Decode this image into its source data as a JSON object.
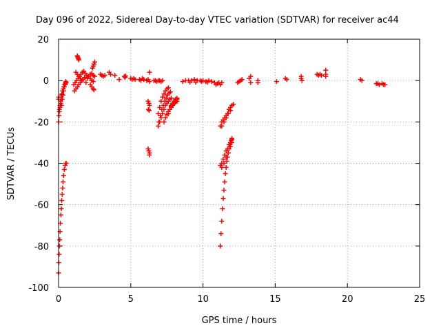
{
  "chart_data": {
    "type": "scatter",
    "title": "Day 096 of 2022, Sidereal Day-to-day VTEC variation (SDTVAR) for receiver ac44",
    "xlabel": "GPS time / hours",
    "ylabel": "SDTVAR / TECUs",
    "xlim": [
      0,
      25
    ],
    "ylim": [
      -100,
      20
    ],
    "xticks": [
      0,
      5,
      10,
      15,
      20,
      25
    ],
    "xtick_labels": [
      "0",
      "5",
      "10",
      "15",
      "20",
      "25"
    ],
    "yticks": [
      -100,
      -80,
      -60,
      -40,
      -20,
      0,
      20
    ],
    "ytick_labels": [
      "-100",
      "-80",
      "-60",
      "-40",
      "-20",
      "0",
      "20"
    ],
    "grid": true,
    "marker": "plus",
    "series": [
      {
        "name": "SDTVAR",
        "color": "#ff0000",
        "points": [
          [
            0.0,
            -93
          ],
          [
            0.02,
            -88
          ],
          [
            0.04,
            -84
          ],
          [
            0.06,
            -80
          ],
          [
            0.08,
            -77
          ],
          [
            0.1,
            -73
          ],
          [
            0.13,
            -69
          ],
          [
            0.16,
            -65
          ],
          [
            0.19,
            -62
          ],
          [
            0.22,
            -58
          ],
          [
            0.25,
            -55
          ],
          [
            0.28,
            -52
          ],
          [
            0.31,
            -49
          ],
          [
            0.35,
            -46
          ],
          [
            0.4,
            -43
          ],
          [
            0.45,
            -41
          ],
          [
            0.5,
            -40
          ],
          [
            0.53,
            -40
          ],
          [
            0.0,
            -20
          ],
          [
            0.03,
            -17
          ],
          [
            0.06,
            -14
          ],
          [
            0.1,
            -12
          ],
          [
            0.14,
            -10
          ],
          [
            0.18,
            -8
          ],
          [
            0.23,
            -6.5
          ],
          [
            0.28,
            -5
          ],
          [
            0.33,
            -4
          ],
          [
            0.38,
            -3
          ],
          [
            0.43,
            -2
          ],
          [
            0.48,
            -1.5
          ],
          [
            0.53,
            -1
          ],
          [
            0.05,
            -15
          ],
          [
            0.1,
            -13
          ],
          [
            0.15,
            -11
          ],
          [
            0.2,
            -9
          ],
          [
            0.25,
            -7
          ],
          [
            0.3,
            -5
          ],
          [
            0.36,
            -3
          ],
          [
            0.42,
            -2
          ],
          [
            0.48,
            -1
          ],
          [
            0.2,
            -12
          ],
          [
            0.25,
            -9
          ],
          [
            0.3,
            -7
          ],
          [
            0.35,
            -5
          ],
          [
            0.4,
            -3
          ],
          [
            0.45,
            -2
          ],
          [
            0.5,
            -0.5
          ],
          [
            0.0,
            -9
          ],
          [
            0.02,
            -8
          ],
          [
            1.05,
            -2
          ],
          [
            1.15,
            -1
          ],
          [
            1.25,
            0
          ],
          [
            1.35,
            1
          ],
          [
            1.45,
            2
          ],
          [
            1.55,
            3
          ],
          [
            1.65,
            4
          ],
          [
            1.75,
            4.5
          ],
          [
            1.85,
            3.5
          ],
          [
            1.95,
            2.5
          ],
          [
            2.05,
            2
          ],
          [
            1.1,
            -5
          ],
          [
            1.2,
            -4
          ],
          [
            1.3,
            -3
          ],
          [
            1.4,
            -2
          ],
          [
            1.5,
            -1
          ],
          [
            1.6,
            0
          ],
          [
            1.7,
            0.5
          ],
          [
            1.8,
            1.5
          ],
          [
            1.2,
            4
          ],
          [
            1.3,
            3
          ],
          [
            1.4,
            2
          ],
          [
            1.5,
            1
          ],
          [
            1.3,
            12
          ],
          [
            1.32,
            11.5
          ],
          [
            1.35,
            11
          ],
          [
            1.38,
            10.5
          ],
          [
            1.4,
            10
          ],
          [
            1.9,
            -1
          ],
          [
            2.0,
            1
          ],
          [
            2.1,
            2
          ],
          [
            2.2,
            3
          ],
          [
            2.3,
            3.5
          ],
          [
            2.4,
            2.5
          ],
          [
            2.5,
            2
          ],
          [
            2.2,
            1
          ],
          [
            2.3,
            0
          ],
          [
            2.4,
            -0.5
          ],
          [
            2.2,
            -2
          ],
          [
            2.3,
            -3
          ],
          [
            2.4,
            -4
          ],
          [
            2.45,
            -4.5
          ],
          [
            2.35,
            6
          ],
          [
            2.4,
            7
          ],
          [
            2.45,
            8
          ],
          [
            2.5,
            9
          ],
          [
            2.9,
            3
          ],
          [
            3.0,
            2.5
          ],
          [
            3.1,
            2
          ],
          [
            3.2,
            2.5
          ],
          [
            3.5,
            4
          ],
          [
            3.6,
            3
          ],
          [
            3.9,
            2.5
          ],
          [
            4.2,
            0.5
          ],
          [
            4.55,
            2
          ],
          [
            4.6,
            1.5
          ],
          [
            4.65,
            2.2
          ],
          [
            5.0,
            1
          ],
          [
            5.1,
            0.5
          ],
          [
            5.2,
            1
          ],
          [
            5.3,
            0.5
          ],
          [
            5.6,
            0.5
          ],
          [
            5.7,
            0
          ],
          [
            5.8,
            1
          ],
          [
            5.9,
            0.5
          ],
          [
            6.1,
            0
          ],
          [
            6.2,
            0.5
          ],
          [
            6.3,
            -0.5
          ],
          [
            6.3,
            4
          ],
          [
            6.2,
            -10
          ],
          [
            6.25,
            -11
          ],
          [
            6.3,
            -12
          ],
          [
            6.22,
            -14
          ],
          [
            6.27,
            -14.5
          ],
          [
            6.2,
            -33
          ],
          [
            6.25,
            -34
          ],
          [
            6.3,
            -35
          ],
          [
            6.28,
            -36
          ],
          [
            6.6,
            0
          ],
          [
            6.7,
            0
          ],
          [
            6.8,
            -0.5
          ],
          [
            6.9,
            0
          ],
          [
            7.0,
            0
          ],
          [
            7.1,
            -0.5
          ],
          [
            7.2,
            0
          ],
          [
            6.9,
            -22
          ],
          [
            7.0,
            -20
          ],
          [
            7.1,
            -18
          ],
          [
            7.2,
            -16
          ],
          [
            7.3,
            -14
          ],
          [
            7.4,
            -12
          ],
          [
            7.5,
            -11
          ],
          [
            7.6,
            -10
          ],
          [
            7.7,
            -9
          ],
          [
            7.8,
            -8.5
          ],
          [
            6.95,
            -20
          ],
          [
            7.05,
            -17
          ],
          [
            7.15,
            -14
          ],
          [
            7.25,
            -12
          ],
          [
            7.35,
            -10
          ],
          [
            7.45,
            -8.5
          ],
          [
            7.55,
            -7
          ],
          [
            7.65,
            -6
          ],
          [
            7.75,
            -5.5
          ],
          [
            6.9,
            -16
          ],
          [
            7.0,
            -13
          ],
          [
            7.1,
            -10
          ],
          [
            7.2,
            -8
          ],
          [
            7.3,
            -6.5
          ],
          [
            7.4,
            -5
          ],
          [
            7.5,
            -4
          ],
          [
            7.6,
            -3.5
          ],
          [
            7.3,
            -20
          ],
          [
            7.4,
            -18
          ],
          [
            7.5,
            -16.5
          ],
          [
            7.6,
            -15
          ],
          [
            7.7,
            -14
          ],
          [
            7.8,
            -13
          ],
          [
            7.9,
            -12
          ],
          [
            8.0,
            -11
          ],
          [
            8.1,
            -10.5
          ],
          [
            8.2,
            -10
          ],
          [
            7.6,
            -16
          ],
          [
            7.7,
            -14
          ],
          [
            7.8,
            -12.5
          ],
          [
            7.9,
            -11.5
          ],
          [
            8.0,
            -10.5
          ],
          [
            8.1,
            -9.5
          ],
          [
            8.2,
            -9
          ],
          [
            7.8,
            -12
          ],
          [
            7.9,
            -11
          ],
          [
            8.0,
            -10
          ],
          [
            8.1,
            -9
          ],
          [
            8.2,
            -8.5
          ],
          [
            8.6,
            -0.5
          ],
          [
            8.8,
            0
          ],
          [
            9.0,
            0
          ],
          [
            9.2,
            0
          ],
          [
            9.4,
            0.5
          ],
          [
            9.6,
            0
          ],
          [
            9.8,
            0
          ],
          [
            10.0,
            0
          ],
          [
            10.2,
            -0.5
          ],
          [
            10.4,
            0
          ],
          [
            10.6,
            -0.5
          ],
          [
            9.1,
            -0.8
          ],
          [
            9.5,
            -0.8
          ],
          [
            9.9,
            -0.5
          ],
          [
            10.3,
            -0.8
          ],
          [
            10.8,
            -1
          ],
          [
            10.9,
            -2
          ],
          [
            11.0,
            -1.5
          ],
          [
            11.1,
            -1
          ],
          [
            11.2,
            -2
          ],
          [
            11.3,
            -1
          ],
          [
            11.2,
            -22
          ],
          [
            11.3,
            -20
          ],
          [
            11.4,
            -19
          ],
          [
            11.5,
            -18
          ],
          [
            11.6,
            -17
          ],
          [
            11.7,
            -16
          ],
          [
            11.8,
            -14
          ],
          [
            11.9,
            -13
          ],
          [
            12.0,
            -12
          ],
          [
            12.1,
            -11.5
          ],
          [
            11.3,
            -22
          ],
          [
            11.45,
            -20
          ],
          [
            11.6,
            -18
          ],
          [
            11.75,
            -16
          ],
          [
            11.9,
            -14.5
          ],
          [
            11.2,
            -80
          ],
          [
            11.25,
            -74
          ],
          [
            11.3,
            -68
          ],
          [
            11.35,
            -62
          ],
          [
            11.4,
            -57
          ],
          [
            11.45,
            -53
          ],
          [
            11.5,
            -49
          ],
          [
            11.55,
            -45
          ],
          [
            11.6,
            -42
          ],
          [
            11.65,
            -39
          ],
          [
            11.7,
            -37
          ],
          [
            11.75,
            -35
          ],
          [
            11.8,
            -33
          ],
          [
            11.85,
            -31
          ],
          [
            11.9,
            -30
          ],
          [
            11.95,
            -29
          ],
          [
            12.0,
            -28
          ],
          [
            11.2,
            -41
          ],
          [
            11.3,
            -40
          ],
          [
            11.4,
            -38
          ],
          [
            11.5,
            -36
          ],
          [
            11.6,
            -34
          ],
          [
            11.7,
            -33
          ],
          [
            11.8,
            -31
          ],
          [
            11.9,
            -30
          ],
          [
            12.0,
            -28.5
          ],
          [
            11.3,
            -42
          ],
          [
            11.45,
            -40
          ],
          [
            11.6,
            -37
          ],
          [
            11.75,
            -35
          ],
          [
            11.9,
            -32
          ],
          [
            12.0,
            -30
          ],
          [
            12.4,
            -1
          ],
          [
            12.5,
            -0.5
          ],
          [
            12.6,
            0
          ],
          [
            12.7,
            0.5
          ],
          [
            13.2,
            1
          ],
          [
            13.3,
            -1
          ],
          [
            13.3,
            2
          ],
          [
            13.8,
            0
          ],
          [
            13.8,
            -1
          ],
          [
            15.1,
            -0.5
          ],
          [
            15.7,
            1
          ],
          [
            15.8,
            0.5
          ],
          [
            16.8,
            2
          ],
          [
            16.8,
            1
          ],
          [
            16.85,
            0
          ],
          [
            17.9,
            3
          ],
          [
            18.0,
            2.5
          ],
          [
            18.1,
            3
          ],
          [
            18.2,
            2.5
          ],
          [
            18.5,
            5
          ],
          [
            18.5,
            3
          ],
          [
            18.5,
            2
          ],
          [
            20.9,
            0.5
          ],
          [
            21.0,
            0
          ],
          [
            22.0,
            -1.5
          ],
          [
            22.1,
            -1.5
          ],
          [
            22.2,
            -2
          ],
          [
            22.4,
            -1.5
          ],
          [
            22.5,
            -2
          ],
          [
            22.6,
            -2
          ]
        ]
      }
    ]
  }
}
